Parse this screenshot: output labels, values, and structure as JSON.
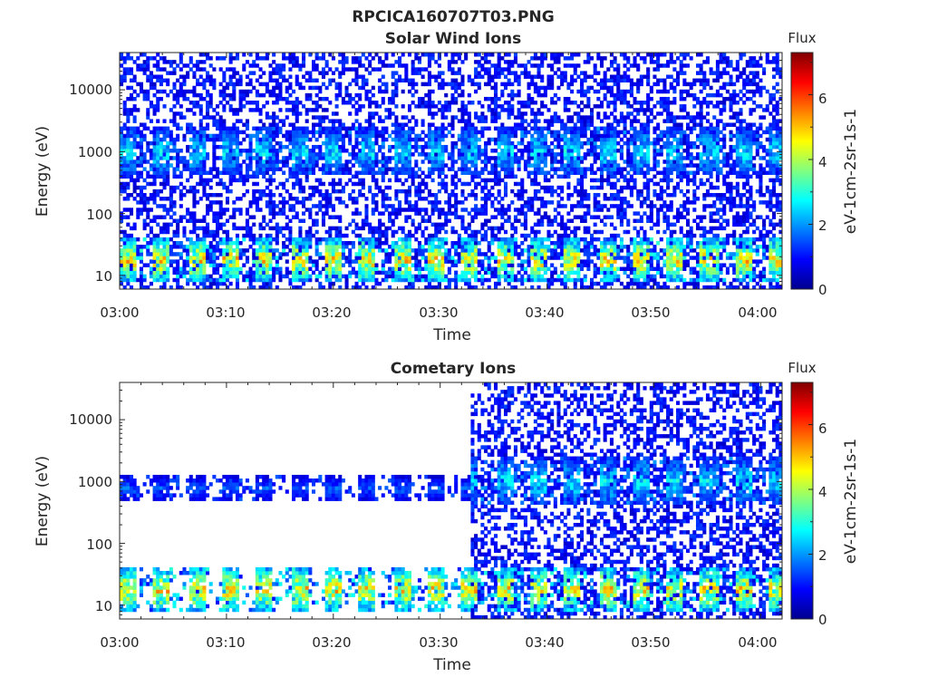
{
  "figure_title": "RPCICA160707T03.PNG",
  "colorbar_cmap": "jet",
  "chart_data": [
    {
      "type": "heatmap",
      "title": "Solar Wind Ions",
      "xlabel": "Time",
      "ylabel": "Energy (eV)",
      "yscale": "log",
      "ylim": [
        6,
        40000
      ],
      "xlim": [
        "03:00",
        "04:02"
      ],
      "xticks": [
        "03:00",
        "03:10",
        "03:20",
        "03:30",
        "03:40",
        "03:50",
        "04:00"
      ],
      "yticks": [
        "10",
        "100",
        "1000",
        "10000"
      ],
      "colorbar": {
        "label_top": "Flux",
        "label": "eV-1cm-2sr-1s-1",
        "range": [
          0,
          7.3
        ],
        "ticks": [
          "0",
          "2",
          "4",
          "6"
        ]
      },
      "features": [
        {
          "name": "solar wind beam",
          "energy_range_ev": [
            400,
            2500
          ],
          "time_range": [
            "03:00",
            "04:02"
          ],
          "flux_peak": 3.2,
          "pattern": "periodic, ~3 min"
        },
        {
          "name": "low-energy population",
          "energy_range_ev": [
            8,
            40
          ],
          "time_range": [
            "03:00",
            "04:02"
          ],
          "flux_peak": 5.8,
          "pattern": "periodic, ~3 min"
        },
        {
          "name": "background",
          "energy_range_ev": [
            6,
            40000
          ],
          "flux_level": 0.5
        }
      ]
    },
    {
      "type": "heatmap",
      "title": "Cometary Ions",
      "xlabel": "Time",
      "ylabel": "Energy (eV)",
      "yscale": "log",
      "ylim": [
        6,
        40000
      ],
      "xlim": [
        "03:00",
        "04:02"
      ],
      "xticks": [
        "03:00",
        "03:10",
        "03:20",
        "03:30",
        "03:40",
        "03:50",
        "04:00"
      ],
      "yticks": [
        "10",
        "100",
        "1000",
        "10000"
      ],
      "colorbar": {
        "label_top": "Flux",
        "label": "eV-1cm-2sr-1s-1",
        "range": [
          0,
          7.3
        ],
        "ticks": [
          "0",
          "2",
          "4",
          "6"
        ]
      },
      "features": [
        {
          "name": "beam",
          "energy_range_ev": [
            500,
            1200
          ],
          "time_range": [
            "03:00",
            "03:33"
          ],
          "flux_peak": 2.0
        },
        {
          "name": "beam",
          "energy_range_ev": [
            400,
            2500
          ],
          "time_range": [
            "03:33",
            "04:02"
          ],
          "flux_peak": 3.2
        },
        {
          "name": "low-energy population",
          "energy_range_ev": [
            8,
            40
          ],
          "time_range": [
            "03:00",
            "04:02"
          ],
          "flux_peak": 5.8
        },
        {
          "name": "background",
          "energy_range_ev": [
            6,
            40000
          ],
          "time_range": [
            "03:33",
            "04:02"
          ],
          "flux_level": 0.5
        }
      ]
    }
  ]
}
